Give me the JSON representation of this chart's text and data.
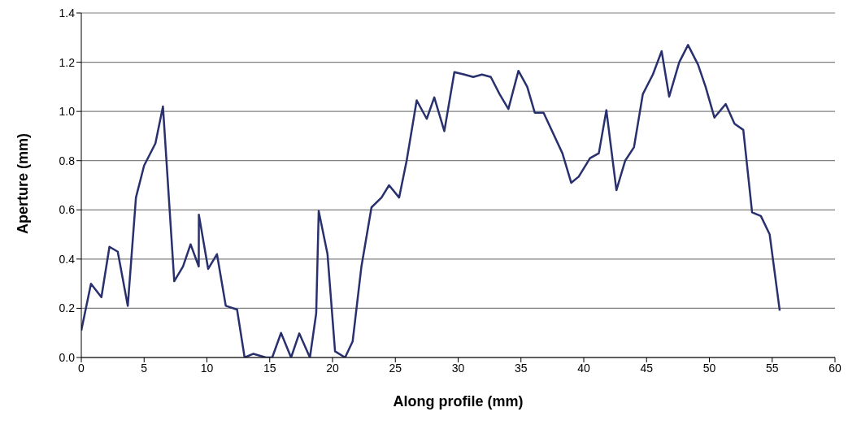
{
  "chart_data": {
    "type": "line",
    "xlabel": "Along profile (mm)",
    "ylabel": "Aperture (mm)",
    "xlim": [
      0,
      60
    ],
    "xticks": [
      0,
      5,
      10,
      15,
      20,
      25,
      30,
      35,
      40,
      45,
      50,
      55,
      60
    ],
    "ylim": [
      0,
      1.4
    ],
    "yticks": [
      {
        "value": 0,
        "label": "0.0"
      },
      {
        "value": 0.2,
        "label": "0.2"
      },
      {
        "value": 0.4,
        "label": "0.4"
      },
      {
        "value": 0.6,
        "label": "0.6"
      },
      {
        "value": 0.8,
        "label": "0.8"
      },
      {
        "value": 1,
        "label": "1.0"
      },
      {
        "value": 1.2,
        "label": "1.2"
      },
      {
        "value": 1.4,
        "label": "1.4"
      }
    ],
    "grid": "y",
    "marker": "none",
    "line_style": "solid",
    "series": [
      {
        "color": "#29306e",
        "x": [
          0,
          0.77,
          1.6,
          2.24,
          2.9,
          3.7,
          4.35,
          5.0,
          5.9,
          6.5,
          7.4,
          8.1,
          8.7,
          9.35,
          9.36,
          10.1,
          10.8,
          11.5,
          12.4,
          13.0,
          13.7,
          14.7,
          15.2,
          15.9,
          16.7,
          17.35,
          18.2,
          18.7,
          18.9,
          19.6,
          20.2,
          21.0,
          21.6,
          22.3,
          23.1,
          23.9,
          24.5,
          25.3,
          25.9,
          26.7,
          27.5,
          28.1,
          28.9,
          29.7,
          30.5,
          31.2,
          31.9,
          32.6,
          33.3,
          34.0,
          34.8,
          35.5,
          36.1,
          36.8,
          38.3,
          39.0,
          39.6,
          40.5,
          41.2,
          41.8,
          42.6,
          43.3,
          44.0,
          44.7,
          45.5,
          46.2,
          46.8,
          47.6,
          48.3,
          49.1,
          49.7,
          50.4,
          51.3,
          52.0,
          52.7,
          53.4,
          54.1,
          54.8,
          55.6
        ],
        "values": [
          0.11,
          0.3,
          0.245,
          0.45,
          0.43,
          0.21,
          0.65,
          0.78,
          0.87,
          1.02,
          0.31,
          0.37,
          0.46,
          0.37,
          0.58,
          0.36,
          0.42,
          0.21,
          0.195,
          0,
          0.015,
          0,
          0,
          0.1,
          0,
          0.098,
          0,
          0.18,
          0.595,
          0.42,
          0.025,
          0,
          0.065,
          0.37,
          0.61,
          0.65,
          0.7,
          0.65,
          0.8,
          1.045,
          0.97,
          1.057,
          0.92,
          1.16,
          1.15,
          1.14,
          1.15,
          1.14,
          1.07,
          1.01,
          1.165,
          1.1,
          0.995,
          0.995,
          0.83,
          0.71,
          0.735,
          0.81,
          0.83,
          1.005,
          0.68,
          0.8,
          0.855,
          1.07,
          1.15,
          1.245,
          1.06,
          1.2,
          1.27,
          1.19,
          1.1,
          0.975,
          1.03,
          0.95,
          0.925,
          0.59,
          0.575,
          0.5,
          0.19
        ]
      }
    ]
  }
}
